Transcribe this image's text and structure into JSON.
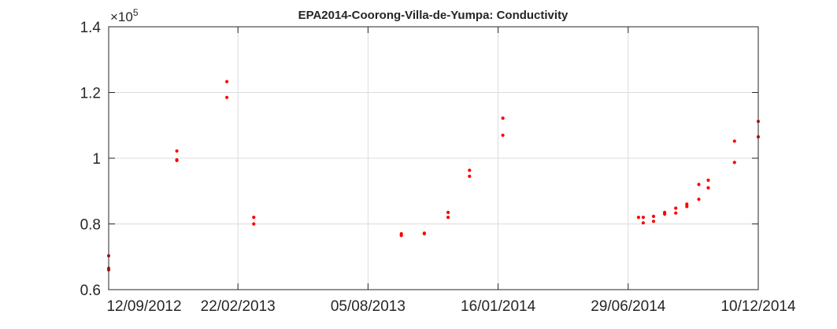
{
  "chart_data": {
    "type": "scatter",
    "title": "EPA2014-Coorong-Villa-de-Yumpa: Conductivity",
    "xlabel": "",
    "ylabel": "",
    "y_exponent_label": "×10",
    "y_exponent_power": "5",
    "xlim": [
      "2012-09-12",
      "2014-12-10"
    ],
    "ylim": [
      60000,
      140000
    ],
    "y_ticks": [
      {
        "value": 60000,
        "label": "0.6"
      },
      {
        "value": 80000,
        "label": "0.8"
      },
      {
        "value": 100000,
        "label": "1"
      },
      {
        "value": 120000,
        "label": "1.2"
      },
      {
        "value": 140000,
        "label": "1.4"
      }
    ],
    "x_ticks": [
      {
        "value": "2012-09-12",
        "label": "12/09/2012"
      },
      {
        "value": "2013-02-22",
        "label": "22/02/2013"
      },
      {
        "value": "2013-08-05",
        "label": "05/08/2013"
      },
      {
        "value": "2014-01-16",
        "label": "16/01/2014"
      },
      {
        "value": "2014-06-29",
        "label": "29/06/2014"
      },
      {
        "value": "2014-12-10",
        "label": "10/12/2014"
      }
    ],
    "grid": true,
    "marker_color": "#ff0000",
    "series": [
      {
        "points": [
          {
            "x": "2012-09-12",
            "y": 70300
          },
          {
            "x": "2012-09-12",
            "y": 66500
          },
          {
            "x": "2012-09-12",
            "y": 66000
          },
          {
            "x": "2012-12-07",
            "y": 102200
          },
          {
            "x": "2012-12-07",
            "y": 99500
          },
          {
            "x": "2012-12-07",
            "y": 99300
          },
          {
            "x": "2013-02-08",
            "y": 123300
          },
          {
            "x": "2013-02-08",
            "y": 118500
          },
          {
            "x": "2013-03-14",
            "y": 82000
          },
          {
            "x": "2013-03-14",
            "y": 80000
          },
          {
            "x": "2013-09-16",
            "y": 77000
          },
          {
            "x": "2013-09-16",
            "y": 76500
          },
          {
            "x": "2013-10-15",
            "y": 77200
          },
          {
            "x": "2013-10-15",
            "y": 77000
          },
          {
            "x": "2013-11-14",
            "y": 83500
          },
          {
            "x": "2013-11-14",
            "y": 82000
          },
          {
            "x": "2013-12-11",
            "y": 96300
          },
          {
            "x": "2013-12-11",
            "y": 94500
          },
          {
            "x": "2014-01-22",
            "y": 112200
          },
          {
            "x": "2014-01-22",
            "y": 107000
          },
          {
            "x": "2014-07-12",
            "y": 82000
          },
          {
            "x": "2014-07-18",
            "y": 82000
          },
          {
            "x": "2014-07-18",
            "y": 80300
          },
          {
            "x": "2014-07-31",
            "y": 82300
          },
          {
            "x": "2014-07-31",
            "y": 80800
          },
          {
            "x": "2014-08-14",
            "y": 83500
          },
          {
            "x": "2014-08-14",
            "y": 83000
          },
          {
            "x": "2014-08-28",
            "y": 84800
          },
          {
            "x": "2014-08-28",
            "y": 83300
          },
          {
            "x": "2014-09-11",
            "y": 86000
          },
          {
            "x": "2014-09-11",
            "y": 85300
          },
          {
            "x": "2014-09-26",
            "y": 92000
          },
          {
            "x": "2014-09-26",
            "y": 87500
          },
          {
            "x": "2014-10-08",
            "y": 93300
          },
          {
            "x": "2014-10-08",
            "y": 91000
          },
          {
            "x": "2014-11-10",
            "y": 105200
          },
          {
            "x": "2014-11-10",
            "y": 98700
          },
          {
            "x": "2014-12-10",
            "y": 111200
          },
          {
            "x": "2014-12-10",
            "y": 106500
          }
        ]
      }
    ]
  }
}
